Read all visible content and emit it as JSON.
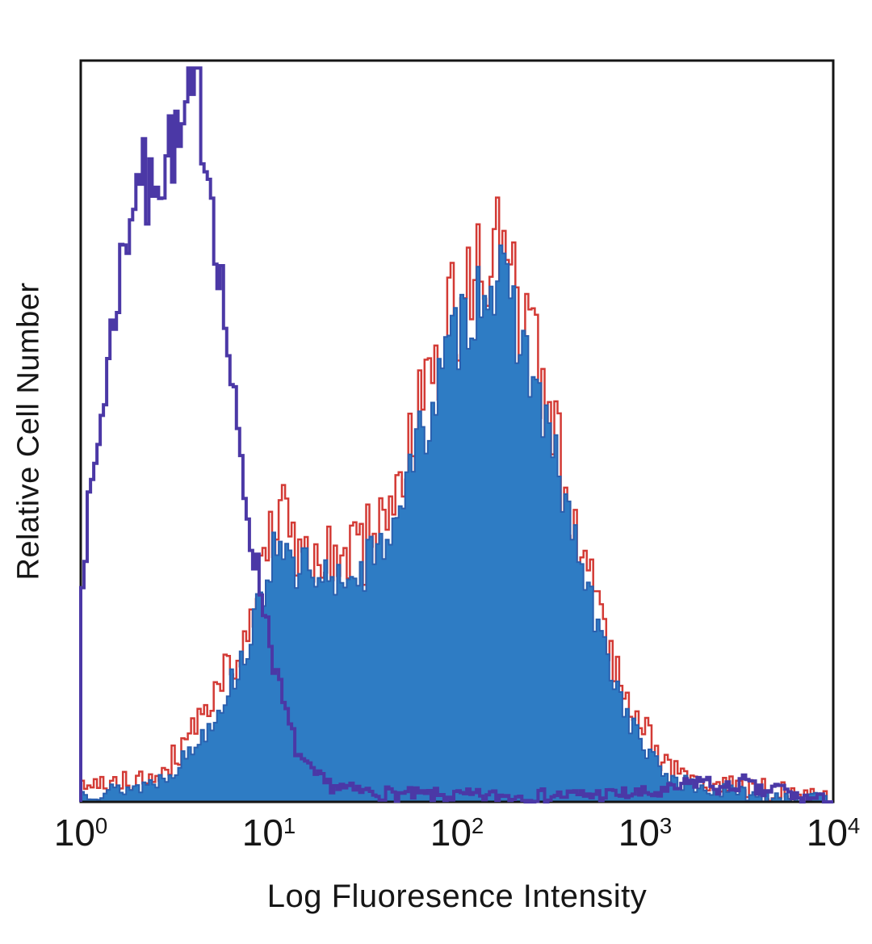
{
  "figure": {
    "xlabel": "Log Fluoresence Intensity",
    "ylabel": "Relative Cell Number"
  },
  "chart_data": {
    "type": "area",
    "variant": "flow-cytometry-histogram-overlay",
    "title": "",
    "xlabel": "Log Fluoresence Intensity",
    "ylabel": "Relative Cell Number",
    "background": "#ffffff",
    "frame": {
      "color": "#151515",
      "width": 3
    },
    "x_axis": {
      "scale": "log10",
      "min": 1,
      "max": 10000,
      "tick_exponents": [
        0,
        1,
        2,
        3,
        4
      ],
      "tick_labels": [
        "10^0",
        "10^1",
        "10^2",
        "10^3",
        "10^4"
      ]
    },
    "y_axis": {
      "label": "Relative Cell Number",
      "range": [
        0,
        1
      ],
      "tick_labels": []
    },
    "legend": "none",
    "bins": 232,
    "draw_order": [
      "stained-red-outline",
      "stained-blue-filled",
      "frame",
      "negative-control-open-purple"
    ],
    "series": [
      {
        "name": "negative-control-open-purple",
        "description": "Open (unfilled) purple histogram, negative/unstained control peaking near x=4",
        "color": "#4b38a6",
        "fill": "none",
        "stroke_width": 4,
        "jitter": 0.045,
        "seed": 7,
        "left_edge_drop": true,
        "anchors": [
          [
            0.0,
            0.3
          ],
          [
            0.04,
            0.38
          ],
          [
            0.08,
            0.46
          ],
          [
            0.12,
            0.54
          ],
          [
            0.16,
            0.62
          ],
          [
            0.2,
            0.7
          ],
          [
            0.24,
            0.76
          ],
          [
            0.28,
            0.82
          ],
          [
            0.32,
            0.86
          ],
          [
            0.36,
            0.8
          ],
          [
            0.4,
            0.88
          ],
          [
            0.44,
            0.84
          ],
          [
            0.48,
            0.9
          ],
          [
            0.52,
            0.87
          ],
          [
            0.56,
            0.92
          ],
          [
            0.6,
            0.94
          ],
          [
            0.63,
            0.95
          ],
          [
            0.66,
            0.9
          ],
          [
            0.7,
            0.82
          ],
          [
            0.74,
            0.72
          ],
          [
            0.78,
            0.62
          ],
          [
            0.82,
            0.52
          ],
          [
            0.86,
            0.44
          ],
          [
            0.9,
            0.37
          ],
          [
            0.94,
            0.31
          ],
          [
            0.98,
            0.26
          ],
          [
            1.02,
            0.2
          ],
          [
            1.06,
            0.15
          ],
          [
            1.1,
            0.11
          ],
          [
            1.15,
            0.07
          ],
          [
            1.2,
            0.045
          ],
          [
            1.3,
            0.025
          ],
          [
            1.45,
            0.015
          ],
          [
            1.7,
            0.01
          ],
          [
            2.0,
            0.008
          ],
          [
            2.4,
            0.008
          ],
          [
            2.8,
            0.01
          ],
          [
            3.1,
            0.012
          ],
          [
            3.3,
            0.03
          ],
          [
            3.42,
            0.015
          ],
          [
            3.52,
            0.028
          ],
          [
            3.62,
            0.012
          ],
          [
            3.72,
            0.02
          ],
          [
            3.8,
            0.006
          ],
          [
            3.9,
            0.004
          ],
          [
            4.0,
            0.0
          ]
        ]
      },
      {
        "name": "stained-red-outline",
        "description": "Red outline histogram, nearly identical to blue filled distribution, slightly taller spikes",
        "color": "#d33a35",
        "fill": "none",
        "stroke_width": 2.5,
        "jitter": 0.075,
        "seed": 41,
        "base_series": "stained-blue-filled",
        "offset": 0.03,
        "left_edge_drop": false
      },
      {
        "name": "stained-blue-filled",
        "description": "Blue filled histogram, stained sample with broad shoulder ~10-40 and main peak near x=150",
        "color": "#2a5fae",
        "fill": "#2e7cc4",
        "stroke_width": 2,
        "jitter": 0.05,
        "seed": 13,
        "left_edge_drop": false,
        "anchors": [
          [
            0.0,
            0.012
          ],
          [
            0.15,
            0.015
          ],
          [
            0.3,
            0.02
          ],
          [
            0.42,
            0.03
          ],
          [
            0.52,
            0.05
          ],
          [
            0.62,
            0.08
          ],
          [
            0.72,
            0.12
          ],
          [
            0.82,
            0.17
          ],
          [
            0.9,
            0.22
          ],
          [
            0.96,
            0.27
          ],
          [
            1.02,
            0.34
          ],
          [
            1.06,
            0.37
          ],
          [
            1.1,
            0.33
          ],
          [
            1.14,
            0.29
          ],
          [
            1.18,
            0.33
          ],
          [
            1.22,
            0.3
          ],
          [
            1.26,
            0.27
          ],
          [
            1.3,
            0.31
          ],
          [
            1.34,
            0.28
          ],
          [
            1.38,
            0.32
          ],
          [
            1.42,
            0.29
          ],
          [
            1.46,
            0.33
          ],
          [
            1.5,
            0.3
          ],
          [
            1.54,
            0.34
          ],
          [
            1.58,
            0.32
          ],
          [
            1.62,
            0.36
          ],
          [
            1.66,
            0.38
          ],
          [
            1.7,
            0.41
          ],
          [
            1.74,
            0.44
          ],
          [
            1.78,
            0.47
          ],
          [
            1.82,
            0.5
          ],
          [
            1.86,
            0.53
          ],
          [
            1.9,
            0.56
          ],
          [
            1.94,
            0.59
          ],
          [
            1.98,
            0.62
          ],
          [
            2.02,
            0.64
          ],
          [
            2.06,
            0.66
          ],
          [
            2.1,
            0.68
          ],
          [
            2.14,
            0.7
          ],
          [
            2.18,
            0.71
          ],
          [
            2.22,
            0.7
          ],
          [
            2.26,
            0.68
          ],
          [
            2.3,
            0.66
          ],
          [
            2.34,
            0.63
          ],
          [
            2.38,
            0.59
          ],
          [
            2.42,
            0.56
          ],
          [
            2.46,
            0.52
          ],
          [
            2.5,
            0.48
          ],
          [
            2.54,
            0.44
          ],
          [
            2.58,
            0.4
          ],
          [
            2.62,
            0.36
          ],
          [
            2.66,
            0.32
          ],
          [
            2.7,
            0.28
          ],
          [
            2.74,
            0.24
          ],
          [
            2.78,
            0.21
          ],
          [
            2.82,
            0.18
          ],
          [
            2.86,
            0.15
          ],
          [
            2.9,
            0.12
          ],
          [
            2.94,
            0.1
          ],
          [
            2.98,
            0.08
          ],
          [
            3.02,
            0.065
          ],
          [
            3.06,
            0.05
          ],
          [
            3.1,
            0.04
          ],
          [
            3.16,
            0.03
          ],
          [
            3.22,
            0.024
          ],
          [
            3.3,
            0.018
          ],
          [
            3.4,
            0.014
          ],
          [
            3.55,
            0.012
          ],
          [
            3.7,
            0.01
          ],
          [
            3.8,
            0.006
          ],
          [
            3.9,
            0.003
          ],
          [
            4.0,
            0.0
          ]
        ]
      }
    ]
  }
}
